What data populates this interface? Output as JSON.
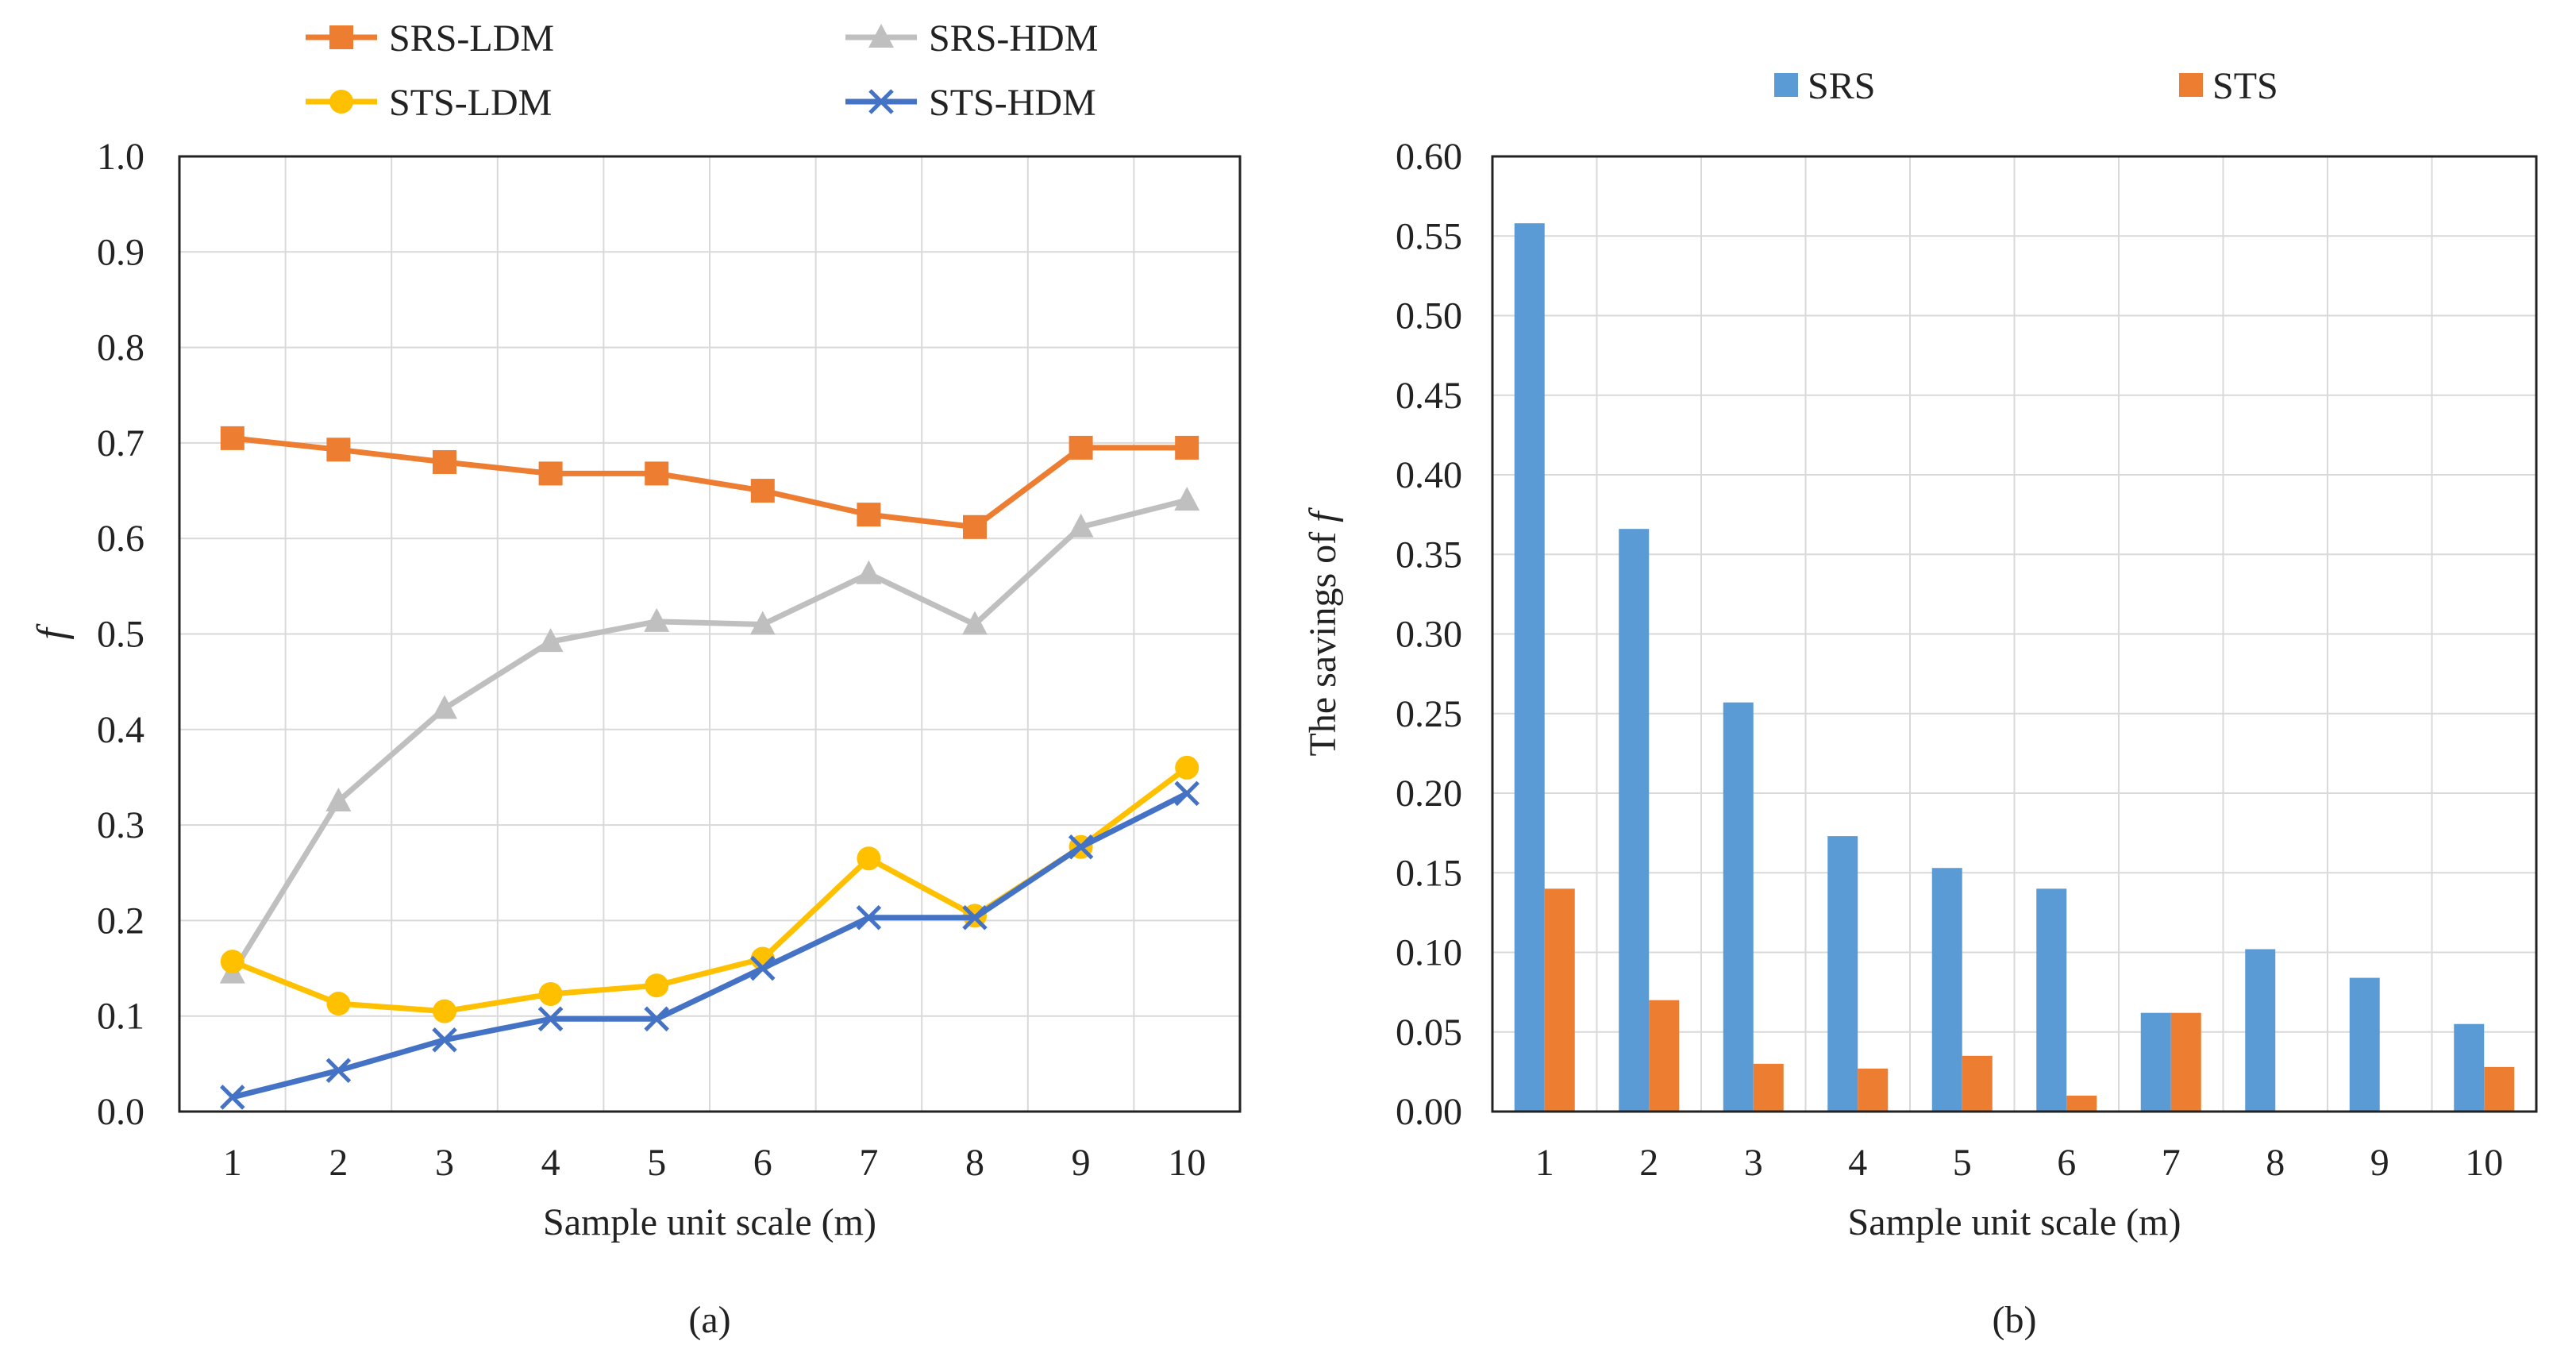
{
  "colors": {
    "srs_ldm": "#ED7D31",
    "srs_hdm": "#BFBFBF",
    "sts_ldm": "#FFC000",
    "sts_hdm": "#4472C4",
    "bar_srs": "#5B9BD5",
    "bar_sts": "#ED7D31",
    "grid": "#D9D9D9",
    "axis": "#222222"
  },
  "chart_data": [
    {
      "type": "line",
      "panel_label": "(a)",
      "title": "",
      "xlabel": "Sample unit scale (m)",
      "ylabel": "f",
      "x": [
        1,
        2,
        3,
        4,
        5,
        6,
        7,
        8,
        9,
        10
      ],
      "ylim": [
        0.0,
        1.0
      ],
      "ytick_step": 0.1,
      "yticks": [
        "0.0",
        "0.1",
        "0.2",
        "0.3",
        "0.4",
        "0.5",
        "0.6",
        "0.7",
        "0.8",
        "0.9",
        "1.0"
      ],
      "grid": true,
      "legend": "top",
      "series": [
        {
          "name": "SRS-LDM",
          "marker": "square",
          "color_key": "srs_ldm",
          "values": [
            0.705,
            0.693,
            0.68,
            0.668,
            0.668,
            0.65,
            0.625,
            0.612,
            0.695,
            0.695
          ]
        },
        {
          "name": "SRS-HDM",
          "marker": "triangle",
          "color_key": "srs_hdm",
          "values": [
            0.145,
            0.325,
            0.422,
            0.492,
            0.513,
            0.51,
            0.563,
            0.51,
            0.612,
            0.64
          ]
        },
        {
          "name": "STS-LDM",
          "marker": "circle",
          "color_key": "sts_ldm",
          "values": [
            0.157,
            0.113,
            0.105,
            0.123,
            0.132,
            0.16,
            0.265,
            0.205,
            0.277,
            0.36
          ]
        },
        {
          "name": "STS-HDM",
          "marker": "x",
          "color_key": "sts_hdm",
          "values": [
            0.015,
            0.043,
            0.075,
            0.097,
            0.097,
            0.15,
            0.203,
            0.203,
            0.277,
            0.333
          ]
        }
      ]
    },
    {
      "type": "bar",
      "panel_label": "(b)",
      "title": "",
      "xlabel": "Sample unit scale (m)",
      "ylabel_prefix": "The savings of ",
      "ylabel_var": "f",
      "categories": [
        "1",
        "2",
        "3",
        "4",
        "5",
        "6",
        "7",
        "8",
        "9",
        "10"
      ],
      "ylim": [
        0.0,
        0.6
      ],
      "ytick_step": 0.05,
      "yticks": [
        "0.00",
        "0.05",
        "0.10",
        "0.15",
        "0.20",
        "0.25",
        "0.30",
        "0.35",
        "0.40",
        "0.45",
        "0.50",
        "0.55",
        "0.60"
      ],
      "grid": true,
      "legend": "top",
      "series": [
        {
          "name": "SRS",
          "color_key": "bar_srs",
          "values": [
            0.558,
            0.366,
            0.257,
            0.173,
            0.153,
            0.14,
            0.062,
            0.102,
            0.084,
            0.055
          ]
        },
        {
          "name": "STS",
          "color_key": "bar_sts",
          "values": [
            0.14,
            0.07,
            0.03,
            0.027,
            0.035,
            0.01,
            0.062,
            0,
            0,
            0.028
          ]
        }
      ]
    }
  ]
}
